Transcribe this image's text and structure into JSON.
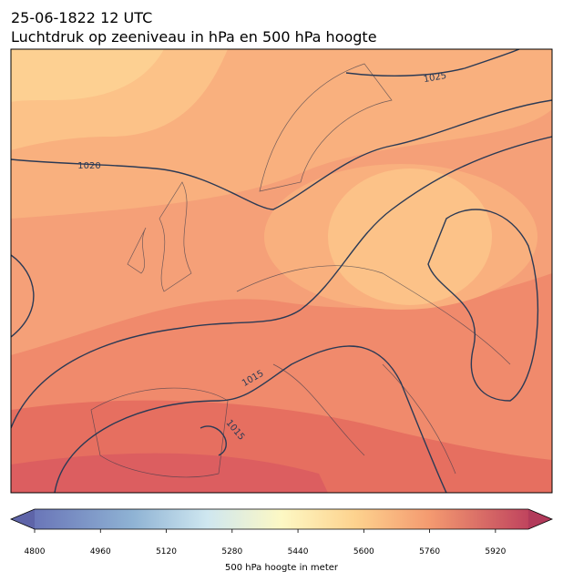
{
  "title": [
    "25-06-1822 12 UTC",
    "Luchtdruk op zeeniveau in hPa en 500 hPa hoogte"
  ],
  "contour_labels": [
    "1025",
    "1020",
    "1015",
    "1015"
  ],
  "colorbar": {
    "label": "500 hPa hoogte in meter",
    "lim": [
      4800,
      6000
    ],
    "ticks": [
      4800,
      4960,
      5120,
      5280,
      5440,
      5600,
      5760,
      5920
    ]
  }
}
